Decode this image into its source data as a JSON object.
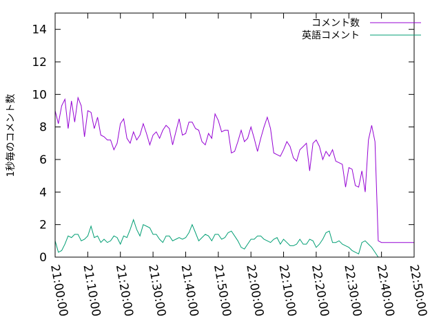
{
  "chart_data": {
    "type": "line",
    "ylabel": "1秒毎のコメント数",
    "xlabel": "",
    "title": "",
    "ylim": [
      0,
      15
    ],
    "yticks": [
      0,
      2,
      4,
      6,
      8,
      10,
      12,
      14
    ],
    "xticks": [
      "21:00:00",
      "21:10:00",
      "21:20:00",
      "21:30:00",
      "21:40:00",
      "21:50:00",
      "22:00:00",
      "22:10:00",
      "22:20:00",
      "22:30:00",
      "22:40:00",
      "22:50:00"
    ],
    "xrange_minutes": [
      0,
      110
    ],
    "grid": false,
    "legend_position": "top-right",
    "series": [
      {
        "name": "コメント数",
        "color": "#9400d3",
        "x": [
          0,
          1,
          2,
          3,
          4,
          5,
          6,
          7,
          8,
          9,
          10,
          11,
          12,
          13,
          14,
          15,
          16,
          17,
          18,
          19,
          20,
          21,
          22,
          23,
          24,
          25,
          26,
          27,
          28,
          29,
          30,
          31,
          32,
          33,
          34,
          35,
          36,
          37,
          38,
          39,
          40,
          41,
          42,
          43,
          44,
          45,
          46,
          47,
          48,
          49,
          50,
          51,
          52,
          53,
          54,
          55,
          56,
          57,
          58,
          59,
          60,
          61,
          62,
          63,
          64,
          65,
          66,
          67,
          68,
          69,
          70,
          71,
          72,
          73,
          74,
          75,
          76,
          77,
          78,
          79,
          80,
          81,
          82,
          83,
          84,
          85,
          86,
          87,
          88,
          89,
          90,
          91,
          92,
          93,
          94,
          95,
          96,
          97,
          98,
          99,
          100,
          101,
          102,
          103,
          104,
          105,
          106,
          107,
          108,
          109,
          110
        ],
        "values": [
          9.0,
          8.2,
          9.3,
          9.7,
          7.9,
          9.6,
          8.3,
          9.8,
          9.3,
          7.4,
          9.0,
          8.9,
          7.9,
          8.6,
          7.5,
          7.4,
          7.2,
          7.2,
          6.6,
          7.0,
          8.2,
          8.5,
          7.3,
          7.0,
          7.7,
          7.2,
          7.5,
          8.2,
          7.6,
          6.9,
          7.5,
          7.7,
          7.3,
          7.8,
          8.1,
          7.9,
          6.9,
          7.7,
          8.5,
          7.5,
          7.6,
          8.3,
          8.3,
          7.9,
          7.8,
          7.1,
          6.9,
          7.6,
          7.3,
          8.8,
          8.4,
          7.7,
          7.8,
          7.8,
          6.4,
          6.5,
          7.1,
          7.8,
          7.1,
          7.3,
          8.0,
          7.3,
          6.5,
          7.3,
          8.0,
          8.6,
          7.9,
          6.4,
          6.3,
          6.2,
          6.6,
          7.1,
          6.8,
          6.1,
          5.9,
          6.6,
          6.8,
          7.0,
          5.3,
          7.0,
          7.2,
          6.8,
          6.0,
          6.5,
          6.2,
          6.6,
          5.9,
          5.8,
          5.7,
          4.3,
          5.5,
          5.4,
          4.4,
          4.3,
          5.3,
          4.0,
          7.2,
          8.1,
          7.1,
          1.0,
          0.9,
          0.9,
          0.9,
          0.9,
          0.9,
          0.9,
          0.9,
          0.9,
          0.9,
          0.9,
          0.9
        ]
      },
      {
        "name": "英語コメント",
        "color": "#009e73",
        "x": [
          0,
          1,
          2,
          3,
          4,
          5,
          6,
          7,
          8,
          9,
          10,
          11,
          12,
          13,
          14,
          15,
          16,
          17,
          18,
          19,
          20,
          21,
          22,
          23,
          24,
          25,
          26,
          27,
          28,
          29,
          30,
          31,
          32,
          33,
          34,
          35,
          36,
          37,
          38,
          39,
          40,
          41,
          42,
          43,
          44,
          45,
          46,
          47,
          48,
          49,
          50,
          51,
          52,
          53,
          54,
          55,
          56,
          57,
          58,
          59,
          60,
          61,
          62,
          63,
          64,
          65,
          66,
          67,
          68,
          69,
          70,
          71,
          72,
          73,
          74,
          75,
          76,
          77,
          78,
          79,
          80,
          81,
          82,
          83,
          84,
          85,
          86,
          87,
          88,
          89,
          90,
          91,
          92,
          93,
          94,
          95,
          96,
          97,
          98,
          99,
          100
        ],
        "values": [
          1.0,
          0.3,
          0.4,
          0.8,
          1.3,
          1.2,
          1.4,
          1.4,
          1.0,
          1.1,
          1.3,
          1.9,
          1.2,
          1.3,
          0.9,
          1.1,
          0.9,
          1.0,
          1.3,
          1.2,
          0.8,
          1.3,
          1.2,
          1.7,
          2.3,
          1.7,
          1.3,
          2.0,
          1.9,
          1.8,
          1.4,
          1.4,
          1.1,
          0.9,
          1.3,
          1.3,
          1.0,
          1.1,
          1.2,
          1.1,
          1.2,
          1.5,
          2.0,
          1.5,
          1.0,
          1.2,
          1.4,
          1.3,
          1.0,
          1.4,
          1.4,
          1.1,
          1.2,
          1.5,
          1.6,
          1.3,
          1.0,
          0.6,
          0.5,
          0.8,
          1.1,
          1.1,
          1.3,
          1.3,
          1.1,
          1.0,
          0.9,
          1.1,
          1.2,
          0.8,
          1.1,
          0.9,
          0.7,
          0.7,
          0.8,
          1.1,
          0.8,
          0.8,
          1.1,
          1.0,
          0.6,
          0.8,
          1.1,
          1.5,
          1.6,
          0.9,
          0.9,
          1.0,
          0.8,
          0.7,
          0.6,
          0.4,
          0.3,
          0.2,
          0.9,
          1.0,
          0.8,
          0.6,
          0.3,
          0.0,
          0.0
        ]
      }
    ]
  }
}
